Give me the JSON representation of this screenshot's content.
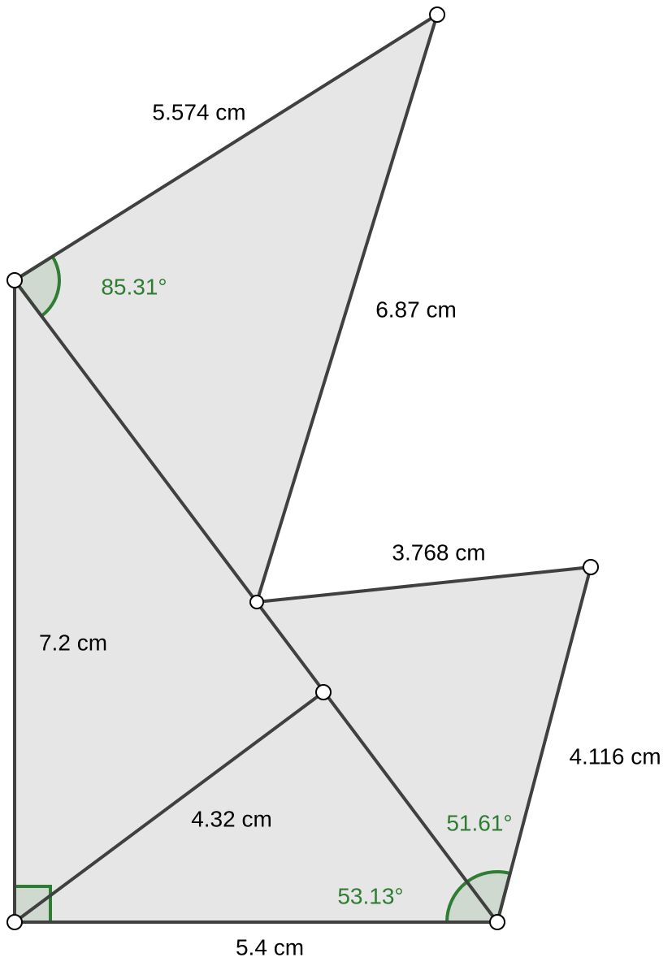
{
  "segment_labels": [
    "5.574 cm",
    "6.87 cm",
    "3.768 cm",
    "7.2 cm",
    "4.116 cm",
    "4.32 cm",
    "5.4 cm"
  ],
  "angle_labels": [
    "85.31°",
    "51.61°",
    "53.13°"
  ]
}
